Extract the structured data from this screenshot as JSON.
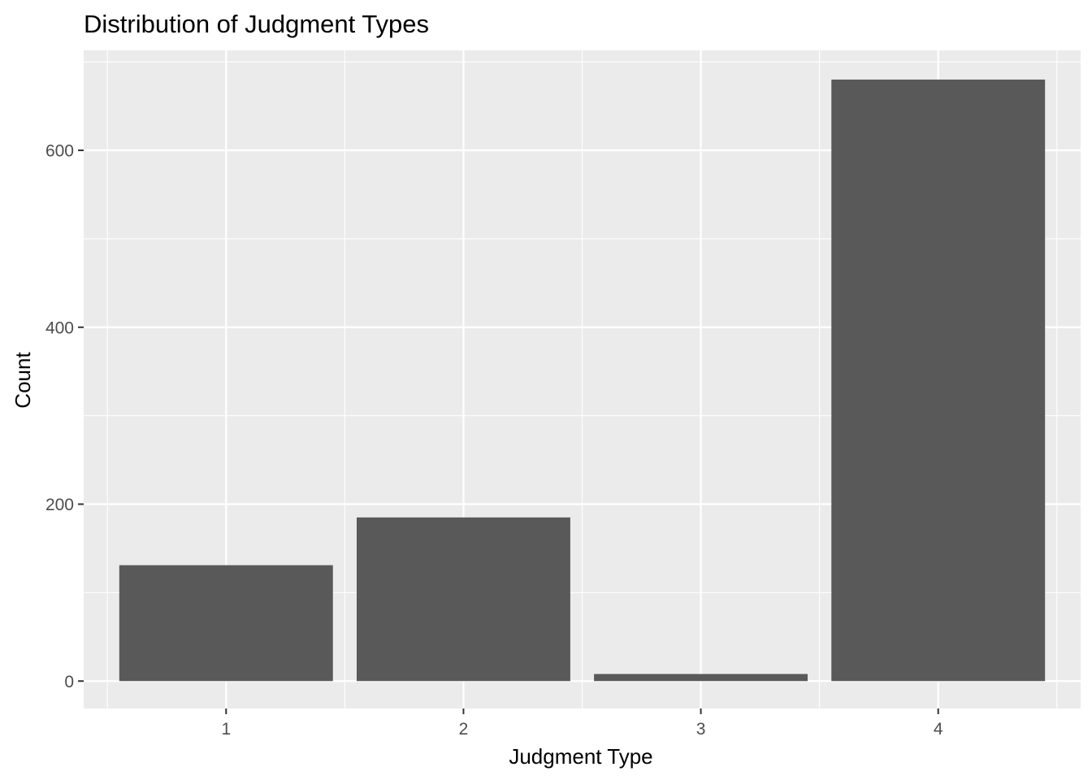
{
  "chart_data": {
    "type": "bar",
    "title": "Distribution of Judgment Types",
    "xlabel": "Judgment Type",
    "ylabel": "Count",
    "categories": [
      "1",
      "2",
      "3",
      "4"
    ],
    "values": [
      131,
      185,
      8,
      680
    ],
    "ylim": [
      -31,
      713
    ],
    "yticks": [
      0,
      200,
      400,
      600
    ],
    "grid": true,
    "colors": {
      "panel_background": "#ebebeb",
      "grid": "#ffffff",
      "bar_fill": "#595959",
      "tick_label": "#4d4d4d",
      "tick_mark": "#333333"
    }
  }
}
